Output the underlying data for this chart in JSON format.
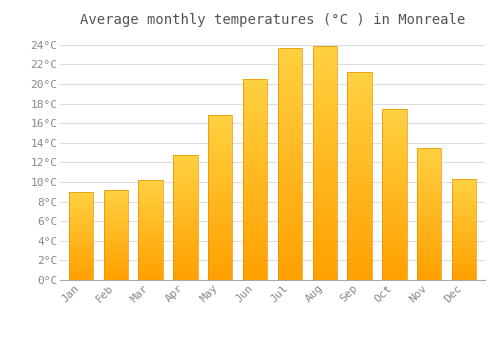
{
  "title": "Average monthly temperatures (°C ) in Monreale",
  "months": [
    "Jan",
    "Feb",
    "Mar",
    "Apr",
    "May",
    "Jun",
    "Jul",
    "Aug",
    "Sep",
    "Oct",
    "Nov",
    "Dec"
  ],
  "values": [
    9.0,
    9.2,
    10.2,
    12.8,
    16.8,
    20.5,
    23.7,
    23.9,
    21.2,
    17.4,
    13.5,
    10.3
  ],
  "bar_color_top": "#FFD040",
  "bar_color_bottom": "#FFA000",
  "bar_edge_color": "#E89000",
  "background_color": "#FFFFFF",
  "grid_color": "#DDDDDD",
  "text_color": "#888888",
  "title_color": "#555555",
  "ylim": [
    0,
    25
  ],
  "ytick_step": 2,
  "title_fontsize": 10,
  "tick_fontsize": 8,
  "font_family": "monospace"
}
